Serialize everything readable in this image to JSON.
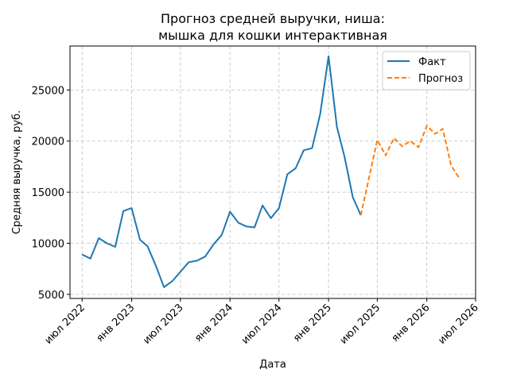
{
  "chart_data": {
    "type": "line",
    "title": [
      "Прогноз средней выручки, ниша:",
      "мышка для кошки интерактивная"
    ],
    "xlabel": "Дата",
    "ylabel": "Средняя выручка, руб.",
    "ylim": [
      4600,
      29300
    ],
    "xlim": [
      "2022-05-17",
      "2026-07-01"
    ],
    "grid": true,
    "legend_position": "top-right",
    "yticks": [
      5000,
      10000,
      15000,
      20000,
      25000
    ],
    "ytick_labels": [
      "5000",
      "10000",
      "15000",
      "20000",
      "25000"
    ],
    "xticks": [
      "2022-07-01",
      "2023-01-01",
      "2023-07-01",
      "2024-01-01",
      "2024-07-01",
      "2025-01-01",
      "2025-07-01",
      "2026-01-01",
      "2026-07-01"
    ],
    "xtick_labels": [
      "июл 2022",
      "янв 2023",
      "июл 2023",
      "янв 2024",
      "июл 2024",
      "янв 2025",
      "июл 2025",
      "янв 2026",
      "июл 2026"
    ],
    "series": [
      {
        "name": "Факт",
        "color": "#1f77b4",
        "style": "solid",
        "x": [
          "2022-07-01",
          "2022-08-01",
          "2022-09-01",
          "2022-10-01",
          "2022-11-01",
          "2022-12-01",
          "2023-01-01",
          "2023-02-01",
          "2023-03-01",
          "2023-04-01",
          "2023-05-01",
          "2023-06-01",
          "2023-07-01",
          "2023-08-01",
          "2023-09-01",
          "2023-10-01",
          "2023-11-01",
          "2023-12-01",
          "2024-01-01",
          "2024-02-01",
          "2024-03-01",
          "2024-04-01",
          "2024-05-01",
          "2024-06-01",
          "2024-07-01",
          "2024-08-01",
          "2024-09-01",
          "2024-10-01",
          "2024-11-01",
          "2024-12-01",
          "2025-01-01",
          "2025-02-01",
          "2025-03-01",
          "2025-04-01",
          "2025-05-01"
        ],
        "values": [
          8900,
          8500,
          10500,
          10000,
          9650,
          13150,
          13450,
          10350,
          9700,
          7800,
          5700,
          6300,
          7200,
          8150,
          8300,
          8700,
          9900,
          10800,
          13100,
          12000,
          11650,
          11550,
          13700,
          12450,
          13450,
          16750,
          17350,
          19100,
          19300,
          22650,
          28300,
          21400,
          18500,
          14500,
          12750
        ]
      },
      {
        "name": "Прогноз",
        "color": "#ff7f0e",
        "style": "dashed",
        "x": [
          "2025-05-01",
          "2025-06-01",
          "2025-07-01",
          "2025-08-01",
          "2025-09-01",
          "2025-10-01",
          "2025-11-01",
          "2025-12-01",
          "2026-01-01",
          "2026-02-01",
          "2026-03-01",
          "2026-04-01",
          "2026-05-01"
        ],
        "values": [
          12750,
          16500,
          20100,
          18600,
          20300,
          19500,
          20000,
          19400,
          21500,
          20700,
          21200,
          17600,
          16400
        ]
      }
    ]
  }
}
